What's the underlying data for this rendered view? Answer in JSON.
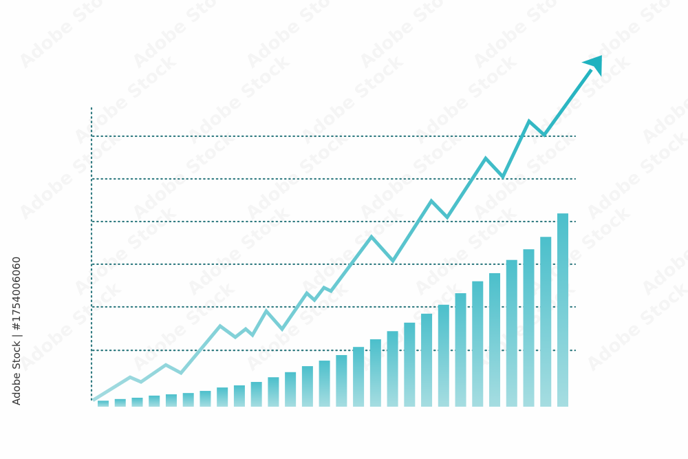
{
  "watermark": {
    "text": "Adobe Stock",
    "side_text": "Adobe Stock | #1754006060"
  },
  "chart_data": {
    "type": "bar+line",
    "title": "",
    "xlabel": "",
    "ylabel": "",
    "ylim": [
      0,
      7.0
    ],
    "xlim": [
      -0.7,
      29.5
    ],
    "grid": {
      "horizontal": true,
      "style": "dotted",
      "values": [
        1.32,
        2.34,
        3.34,
        4.34,
        5.34,
        6.34
      ]
    },
    "bars": {
      "values": [
        0.14,
        0.18,
        0.21,
        0.26,
        0.29,
        0.32,
        0.37,
        0.45,
        0.5,
        0.58,
        0.69,
        0.81,
        0.95,
        1.08,
        1.21,
        1.4,
        1.58,
        1.77,
        1.97,
        2.18,
        2.39,
        2.66,
        2.94,
        3.13,
        3.44,
        3.69,
        3.98,
        4.53
      ],
      "color_top": "#4bbfcb",
      "color_bottom": "#a6dde1"
    },
    "line": {
      "points": [
        [
          -0.61,
          0.15
        ],
        [
          1.58,
          0.69
        ],
        [
          2.22,
          0.58
        ],
        [
          3.68,
          0.98
        ],
        [
          4.57,
          0.79
        ],
        [
          6.87,
          1.89
        ],
        [
          7.76,
          1.63
        ],
        [
          8.37,
          1.82
        ],
        [
          8.77,
          1.68
        ],
        [
          9.58,
          2.24
        ],
        [
          10.51,
          1.82
        ],
        [
          11.96,
          2.66
        ],
        [
          12.41,
          2.5
        ],
        [
          12.97,
          2.79
        ],
        [
          13.38,
          2.71
        ],
        [
          15.76,
          3.98
        ],
        [
          17.02,
          3.42
        ],
        [
          19.28,
          4.82
        ],
        [
          20.21,
          4.44
        ],
        [
          22.47,
          5.82
        ],
        [
          23.48,
          5.39
        ],
        [
          25.02,
          6.69
        ],
        [
          25.91,
          6.37
        ],
        [
          29.3,
          8.24
        ]
      ],
      "arrow": true,
      "color_start": "#a3dbe0",
      "color_end": "#1fb2bf"
    },
    "axis_color": "#2f7a80"
  }
}
